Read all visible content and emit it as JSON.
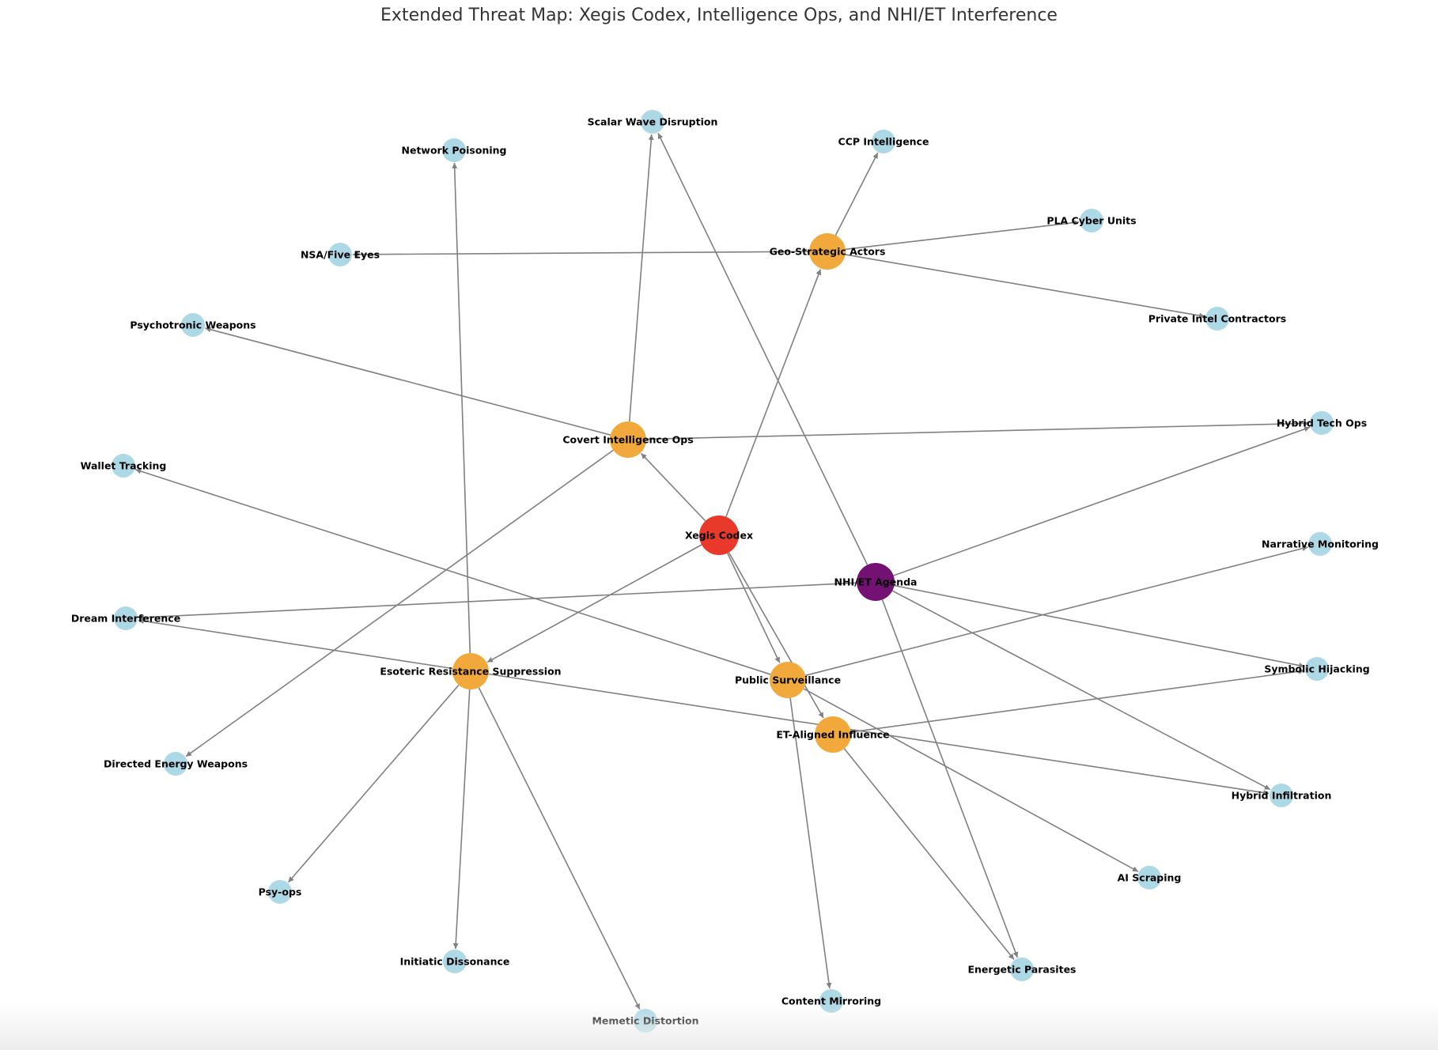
{
  "title": "Extended Threat Map: Xegis Codex, Intelligence Ops, and NHI/ET Interference",
  "colors": {
    "core": "#e8392a",
    "category": "#f2a93b",
    "agenda": "#731273",
    "leaf": "#add8e6",
    "edge": "#808080"
  },
  "nodes": [
    {
      "id": "xegis",
      "label": "Xegis Codex",
      "kind": "core"
    },
    {
      "id": "nhi",
      "label": "NHI/ET Agenda",
      "kind": "agenda"
    },
    {
      "id": "covert",
      "label": "Covert Intelligence Ops",
      "kind": "category"
    },
    {
      "id": "geo",
      "label": "Geo-Strategic Actors",
      "kind": "category"
    },
    {
      "id": "esoteric",
      "label": "Esoteric Resistance Suppression",
      "kind": "category"
    },
    {
      "id": "public",
      "label": "Public Surveillance",
      "kind": "category"
    },
    {
      "id": "etaligned",
      "label": "ET-Aligned Influence",
      "kind": "category"
    },
    {
      "id": "scalar",
      "label": "Scalar Wave Disruption",
      "kind": "leaf"
    },
    {
      "id": "network",
      "label": "Network Poisoning",
      "kind": "leaf"
    },
    {
      "id": "ccp",
      "label": "CCP Intelligence",
      "kind": "leaf"
    },
    {
      "id": "pla",
      "label": "PLA Cyber Units",
      "kind": "leaf"
    },
    {
      "id": "nsa",
      "label": "NSA/Five Eyes",
      "kind": "leaf"
    },
    {
      "id": "private",
      "label": "Private Intel Contractors",
      "kind": "leaf"
    },
    {
      "id": "psychotronic",
      "label": "Psychotronic Weapons",
      "kind": "leaf"
    },
    {
      "id": "hybridtech",
      "label": "Hybrid Tech Ops",
      "kind": "leaf"
    },
    {
      "id": "wallet",
      "label": "Wallet Tracking",
      "kind": "leaf"
    },
    {
      "id": "narrative",
      "label": "Narrative Monitoring",
      "kind": "leaf"
    },
    {
      "id": "dream",
      "label": "Dream Interference",
      "kind": "leaf"
    },
    {
      "id": "symbolic",
      "label": "Symbolic Hijacking",
      "kind": "leaf"
    },
    {
      "id": "directed",
      "label": "Directed Energy Weapons",
      "kind": "leaf"
    },
    {
      "id": "hybridinf",
      "label": "Hybrid Infiltration",
      "kind": "leaf"
    },
    {
      "id": "aiscraping",
      "label": "AI Scraping",
      "kind": "leaf"
    },
    {
      "id": "psyops",
      "label": "Psy-ops",
      "kind": "leaf"
    },
    {
      "id": "initiatic",
      "label": "Initiatic Dissonance",
      "kind": "leaf"
    },
    {
      "id": "energetic",
      "label": "Energetic Parasites",
      "kind": "leaf"
    },
    {
      "id": "content",
      "label": "Content Mirroring",
      "kind": "leaf"
    },
    {
      "id": "memetic",
      "label": "Memetic Distortion",
      "kind": "leaf"
    }
  ],
  "edges": [
    [
      "xegis",
      "covert"
    ],
    [
      "xegis",
      "geo"
    ],
    [
      "xegis",
      "esoteric"
    ],
    [
      "xegis",
      "public"
    ],
    [
      "xegis",
      "etaligned"
    ],
    [
      "covert",
      "scalar"
    ],
    [
      "covert",
      "psychotronic"
    ],
    [
      "covert",
      "hybridtech"
    ],
    [
      "covert",
      "directed"
    ],
    [
      "geo",
      "ccp"
    ],
    [
      "geo",
      "pla"
    ],
    [
      "geo",
      "nsa"
    ],
    [
      "geo",
      "private"
    ],
    [
      "nhi",
      "scalar"
    ],
    [
      "nhi",
      "hybridtech"
    ],
    [
      "nhi",
      "dream"
    ],
    [
      "nhi",
      "symbolic"
    ],
    [
      "nhi",
      "hybridinf"
    ],
    [
      "nhi",
      "energetic"
    ],
    [
      "esoteric",
      "network"
    ],
    [
      "esoteric",
      "dream"
    ],
    [
      "esoteric",
      "psyops"
    ],
    [
      "esoteric",
      "initiatic"
    ],
    [
      "esoteric",
      "memetic"
    ],
    [
      "esoteric",
      "hybridinf"
    ],
    [
      "public",
      "wallet"
    ],
    [
      "public",
      "narrative"
    ],
    [
      "public",
      "aiscraping"
    ],
    [
      "public",
      "content"
    ],
    [
      "etaligned",
      "symbolic"
    ],
    [
      "etaligned",
      "energetic"
    ]
  ]
}
